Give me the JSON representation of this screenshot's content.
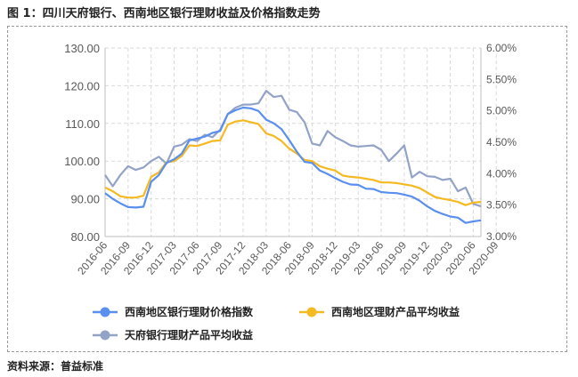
{
  "figure_title": "图 1：四川天府银行、西南地区银行理财收益及价格指数走势",
  "source_text": "资料来源：普益标准",
  "colors": {
    "index": "#5B8FEF",
    "southwest_yield": "#F5B921",
    "tianfu_yield": "#93A3C7",
    "grid": "#D9D9D9",
    "axis_text": "#595959"
  },
  "chart_data": {
    "type": "line",
    "title": "图 1：四川天府银行、西南地区银行理财收益及价格指数走势",
    "x_tick_labels": [
      "2016-06",
      "2016-09",
      "2016-12",
      "2017-03",
      "2017-06",
      "2017-09",
      "2017-12",
      "2018-03",
      "2018-06",
      "2018-09",
      "2018-12",
      "2019-03",
      "2019-06",
      "2019-09",
      "2019-12",
      "2020-03",
      "2020-06",
      "2020-09"
    ],
    "y_left": {
      "min": 80,
      "max": 130,
      "step": 10,
      "tick_labels": [
        "80.00",
        "90.00",
        "100.00",
        "110.00",
        "120.00",
        "130.00"
      ]
    },
    "y_right": {
      "min": 3.0,
      "max": 6.0,
      "step": 0.5,
      "tick_labels": [
        "3.00%",
        "3.50%",
        "4.00%",
        "4.50%",
        "5.00%",
        "5.50%",
        "6.00%"
      ]
    },
    "series": [
      {
        "name": "西南地区银行理财价格指数",
        "axis": "left",
        "color_key": "index",
        "values": [
          91.5,
          90,
          88.8,
          87.8,
          87.7,
          87.9,
          94.5,
          96.3,
          99.5,
          100.5,
          102,
          105.5,
          106,
          106.5,
          107.5,
          108,
          112.5,
          113.5,
          114.2,
          114.0,
          113.3,
          111,
          110,
          108.5,
          105.6,
          102.5,
          99.8,
          99.5,
          97.5,
          96.6,
          95.5,
          94.5,
          93.8,
          93.7,
          92.7,
          92.6,
          91.8,
          91.6,
          91.5,
          91.1,
          90.6,
          89.5,
          88.0,
          86.8,
          86.0,
          85.3,
          85.0,
          83.6,
          84.0,
          84.3
        ]
      },
      {
        "name": "西南地区理财产品平均收益",
        "axis": "right",
        "color_key": "southwest_yield",
        "values": [
          3.78,
          3.72,
          3.64,
          3.62,
          3.62,
          3.65,
          3.95,
          4.02,
          4.18,
          4.2,
          4.28,
          4.45,
          4.44,
          4.48,
          4.52,
          4.53,
          4.78,
          4.83,
          4.85,
          4.82,
          4.79,
          4.64,
          4.6,
          4.52,
          4.4,
          4.32,
          4.22,
          4.2,
          4.12,
          4.08,
          4.05,
          3.97,
          3.95,
          3.94,
          3.92,
          3.9,
          3.86,
          3.86,
          3.85,
          3.83,
          3.81,
          3.77,
          3.7,
          3.63,
          3.6,
          3.58,
          3.55,
          3.5,
          3.54,
          3.55
        ]
      },
      {
        "name": "天府银行理财产品平均收益",
        "axis": "right",
        "color_key": "tianfu_yield",
        "values": [
          3.98,
          3.8,
          3.98,
          4.12,
          4.06,
          4.1,
          4.2,
          4.27,
          4.16,
          4.43,
          4.46,
          4.55,
          4.52,
          4.62,
          4.58,
          4.7,
          4.95,
          5.05,
          5.1,
          5.1,
          5.12,
          5.32,
          5.22,
          5.24,
          5.02,
          4.98,
          4.82,
          4.48,
          4.45,
          4.68,
          4.58,
          4.52,
          4.45,
          4.43,
          4.44,
          4.45,
          4.38,
          4.2,
          4.32,
          4.45,
          3.94,
          4.03,
          3.96,
          3.95,
          3.9,
          3.92,
          3.72,
          3.78,
          3.52,
          3.48
        ]
      }
    ],
    "legend_position": "bottom",
    "grid": true
  }
}
